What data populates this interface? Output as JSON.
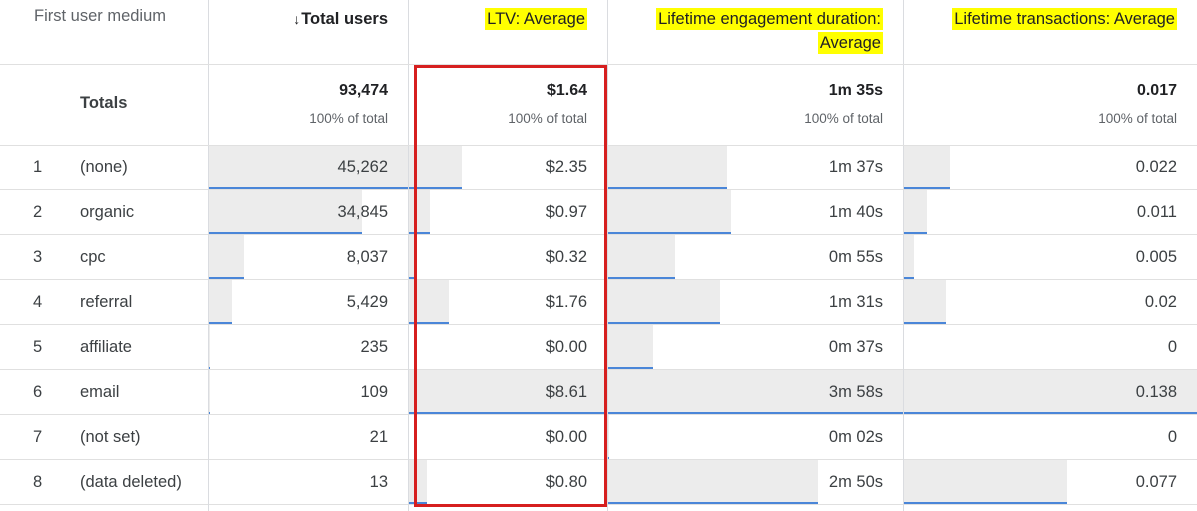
{
  "header": {
    "dimension": "First user medium",
    "col1": {
      "arrow": "↓",
      "label": "Total users"
    },
    "col2": "LTV: Average",
    "col3_line1": "Lifetime engagement duration:",
    "col3_line2": "Average",
    "col4": "Lifetime transactions: Average"
  },
  "totals": {
    "label": "Totals",
    "values": [
      "93,474",
      "$1.64",
      "1m 35s",
      "0.017"
    ],
    "pct": [
      "100% of total",
      "100% of total",
      "100% of total",
      "100% of total"
    ]
  },
  "rows": [
    {
      "idx": "1",
      "name": "(none)",
      "values": [
        "45,262",
        "$2.35",
        "1m 37s",
        "0.022"
      ],
      "bars": [
        1.0,
        0.273,
        0.407,
        0.159
      ]
    },
    {
      "idx": "2",
      "name": "organic",
      "values": [
        "34,845",
        "$0.97",
        "1m 40s",
        "0.011"
      ],
      "bars": [
        0.77,
        0.113,
        0.419,
        0.08
      ]
    },
    {
      "idx": "3",
      "name": "cpc",
      "values": [
        "8,037",
        "$0.32",
        "0m 55s",
        "0.005"
      ],
      "bars": [
        0.178,
        0.037,
        0.231,
        0.036
      ]
    },
    {
      "idx": "4",
      "name": "referral",
      "values": [
        "5,429",
        "$1.76",
        "1m 31s",
        "0.02"
      ],
      "bars": [
        0.12,
        0.204,
        0.382,
        0.145
      ]
    },
    {
      "idx": "5",
      "name": "affiliate",
      "values": [
        "235",
        "$0.00",
        "0m 37s",
        "0"
      ],
      "bars": [
        0.005,
        0.0,
        0.155,
        0.0
      ]
    },
    {
      "idx": "6",
      "name": "email",
      "values": [
        "109",
        "$8.61",
        "3m 58s",
        "0.138"
      ],
      "bars": [
        0.002,
        1.0,
        1.0,
        1.0
      ]
    },
    {
      "idx": "7",
      "name": "(not set)",
      "values": [
        "21",
        "$0.00",
        "0m 02s",
        "0"
      ],
      "bars": [
        0.0,
        0.0,
        0.008,
        0.0
      ]
    },
    {
      "idx": "8",
      "name": "(data deleted)",
      "values": [
        "13",
        "$0.80",
        "2m 50s",
        "0.077"
      ],
      "bars": [
        0.0,
        0.093,
        0.714,
        0.558
      ]
    }
  ],
  "colors": {
    "highlight": "#ffff00",
    "annotation_box": "#d61f1f",
    "bar_fill": "#ececec",
    "bar_line": "#4a86d8"
  }
}
